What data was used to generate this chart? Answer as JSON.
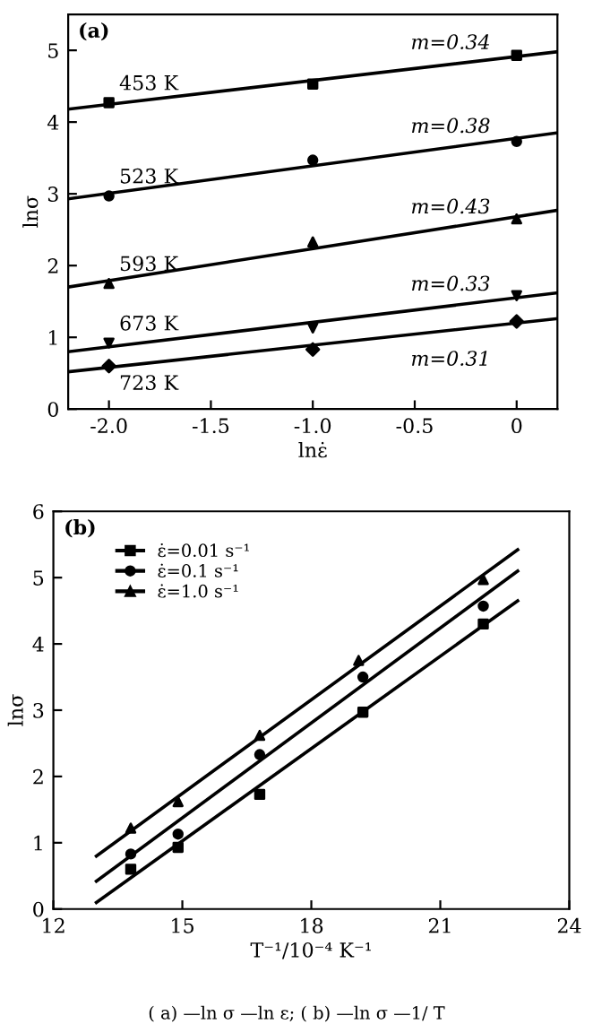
{
  "chart_data": [
    {
      "type": "scatter",
      "xlabel": "lnε̇",
      "ylabel": "lnσ",
      "xlim": [
        -2.2,
        0.2
      ],
      "xticks": [
        {
          "value": -2.0,
          "label": "-2.0"
        },
        {
          "value": -1.5,
          "label": "-1.5"
        },
        {
          "value": -1.0,
          "label": "-1.0"
        },
        {
          "value": -0.5,
          "label": "-0.5"
        },
        0
      ],
      "ylim": [
        0,
        5.5
      ],
      "yticks": [
        0,
        1,
        2,
        3,
        4,
        5
      ],
      "grid": false,
      "legend": false,
      "annotations": [
        "(a)",
        "m=0.34",
        "m=0.38",
        "m=0.43",
        "m=0.33",
        "m=0.31"
      ],
      "series": [
        {
          "name": "453 K",
          "type": "scatter",
          "marker": "square",
          "color": "#000000",
          "x": [
            -2,
            -1,
            0
          ],
          "values": [
            4.27,
            4.53,
            4.93
          ]
        },
        {
          "type": "line",
          "color": "#000000",
          "x": [
            -2.2,
            0.2
          ],
          "values": [
            4.18,
            4.98
          ]
        },
        {
          "name": "523 K",
          "type": "scatter",
          "marker": "circle",
          "color": "#000000",
          "x": [
            -2,
            -1,
            0
          ],
          "values": [
            2.97,
            3.47,
            3.73
          ]
        },
        {
          "type": "line",
          "color": "#000000",
          "x": [
            -2.2,
            0.2
          ],
          "values": [
            2.93,
            3.85
          ]
        },
        {
          "name": "593 K",
          "type": "scatter",
          "marker": "triangle",
          "color": "#000000",
          "x": [
            -2,
            -1,
            0
          ],
          "values": [
            1.75,
            2.33,
            2.65
          ]
        },
        {
          "type": "line",
          "color": "#000000",
          "x": [
            -2.2,
            0.2
          ],
          "values": [
            1.7,
            2.77
          ]
        },
        {
          "name": "673 K",
          "type": "scatter",
          "marker": "triangle_down",
          "color": "#000000",
          "x": [
            -2,
            -1,
            0
          ],
          "values": [
            0.92,
            1.13,
            1.58
          ]
        },
        {
          "type": "line",
          "color": "#000000",
          "x": [
            -2.2,
            0.2
          ],
          "values": [
            0.8,
            1.62
          ]
        },
        {
          "name": "723 K",
          "type": "scatter",
          "marker": "diamond",
          "color": "#000000",
          "x": [
            -2,
            -1,
            0
          ],
          "values": [
            0.6,
            0.83,
            1.22
          ]
        },
        {
          "type": "line",
          "color": "#000000",
          "x": [
            -2.2,
            0.2
          ],
          "values": [
            0.52,
            1.26
          ]
        }
      ]
    },
    {
      "type": "scatter",
      "xlabel": "T⁻¹/10⁻⁴ K⁻¹",
      "ylabel": "lnσ",
      "xlim": [
        12,
        24
      ],
      "xticks": [
        12,
        15,
        18,
        21,
        24
      ],
      "ylim": [
        0,
        6
      ],
      "yticks": [
        0,
        1,
        2,
        3,
        4,
        5,
        6
      ],
      "grid": false,
      "legend": "top left",
      "annotations": [
        "(b)",
        "( a) —ln σ —ln ε; ( b) —ln σ —1/ T"
      ],
      "series": [
        {
          "name": "ε̇=0.01 s⁻¹",
          "type": "scatter",
          "marker": "square",
          "color": "#000000",
          "x": [
            13.8,
            14.9,
            16.8,
            19.2,
            22
          ],
          "values": [
            0.6,
            0.93,
            1.73,
            2.97,
            4.3
          ]
        },
        {
          "type": "line",
          "color": "#000000",
          "x": [
            13,
            22.8
          ],
          "values": [
            0.1,
            4.65
          ]
        },
        {
          "name": "ε̇=0.1 s⁻¹",
          "type": "scatter",
          "marker": "circle",
          "color": "#000000",
          "x": [
            13.8,
            14.9,
            16.8,
            19.2,
            22
          ],
          "values": [
            0.83,
            1.13,
            2.33,
            3.5,
            4.57
          ]
        },
        {
          "type": "line",
          "color": "#000000",
          "x": [
            13,
            22.8
          ],
          "values": [
            0.42,
            5.1
          ]
        },
        {
          "name": "ε̇=1.0 s⁻¹",
          "type": "scatter",
          "marker": "triangle",
          "color": "#000000",
          "x": [
            13.8,
            14.9,
            16.8,
            19.1,
            22
          ],
          "values": [
            1.22,
            1.62,
            2.62,
            3.75,
            4.97
          ]
        },
        {
          "type": "line",
          "color": "#000000",
          "x": [
            13,
            22.8
          ],
          "values": [
            0.8,
            5.42
          ]
        }
      ]
    }
  ]
}
